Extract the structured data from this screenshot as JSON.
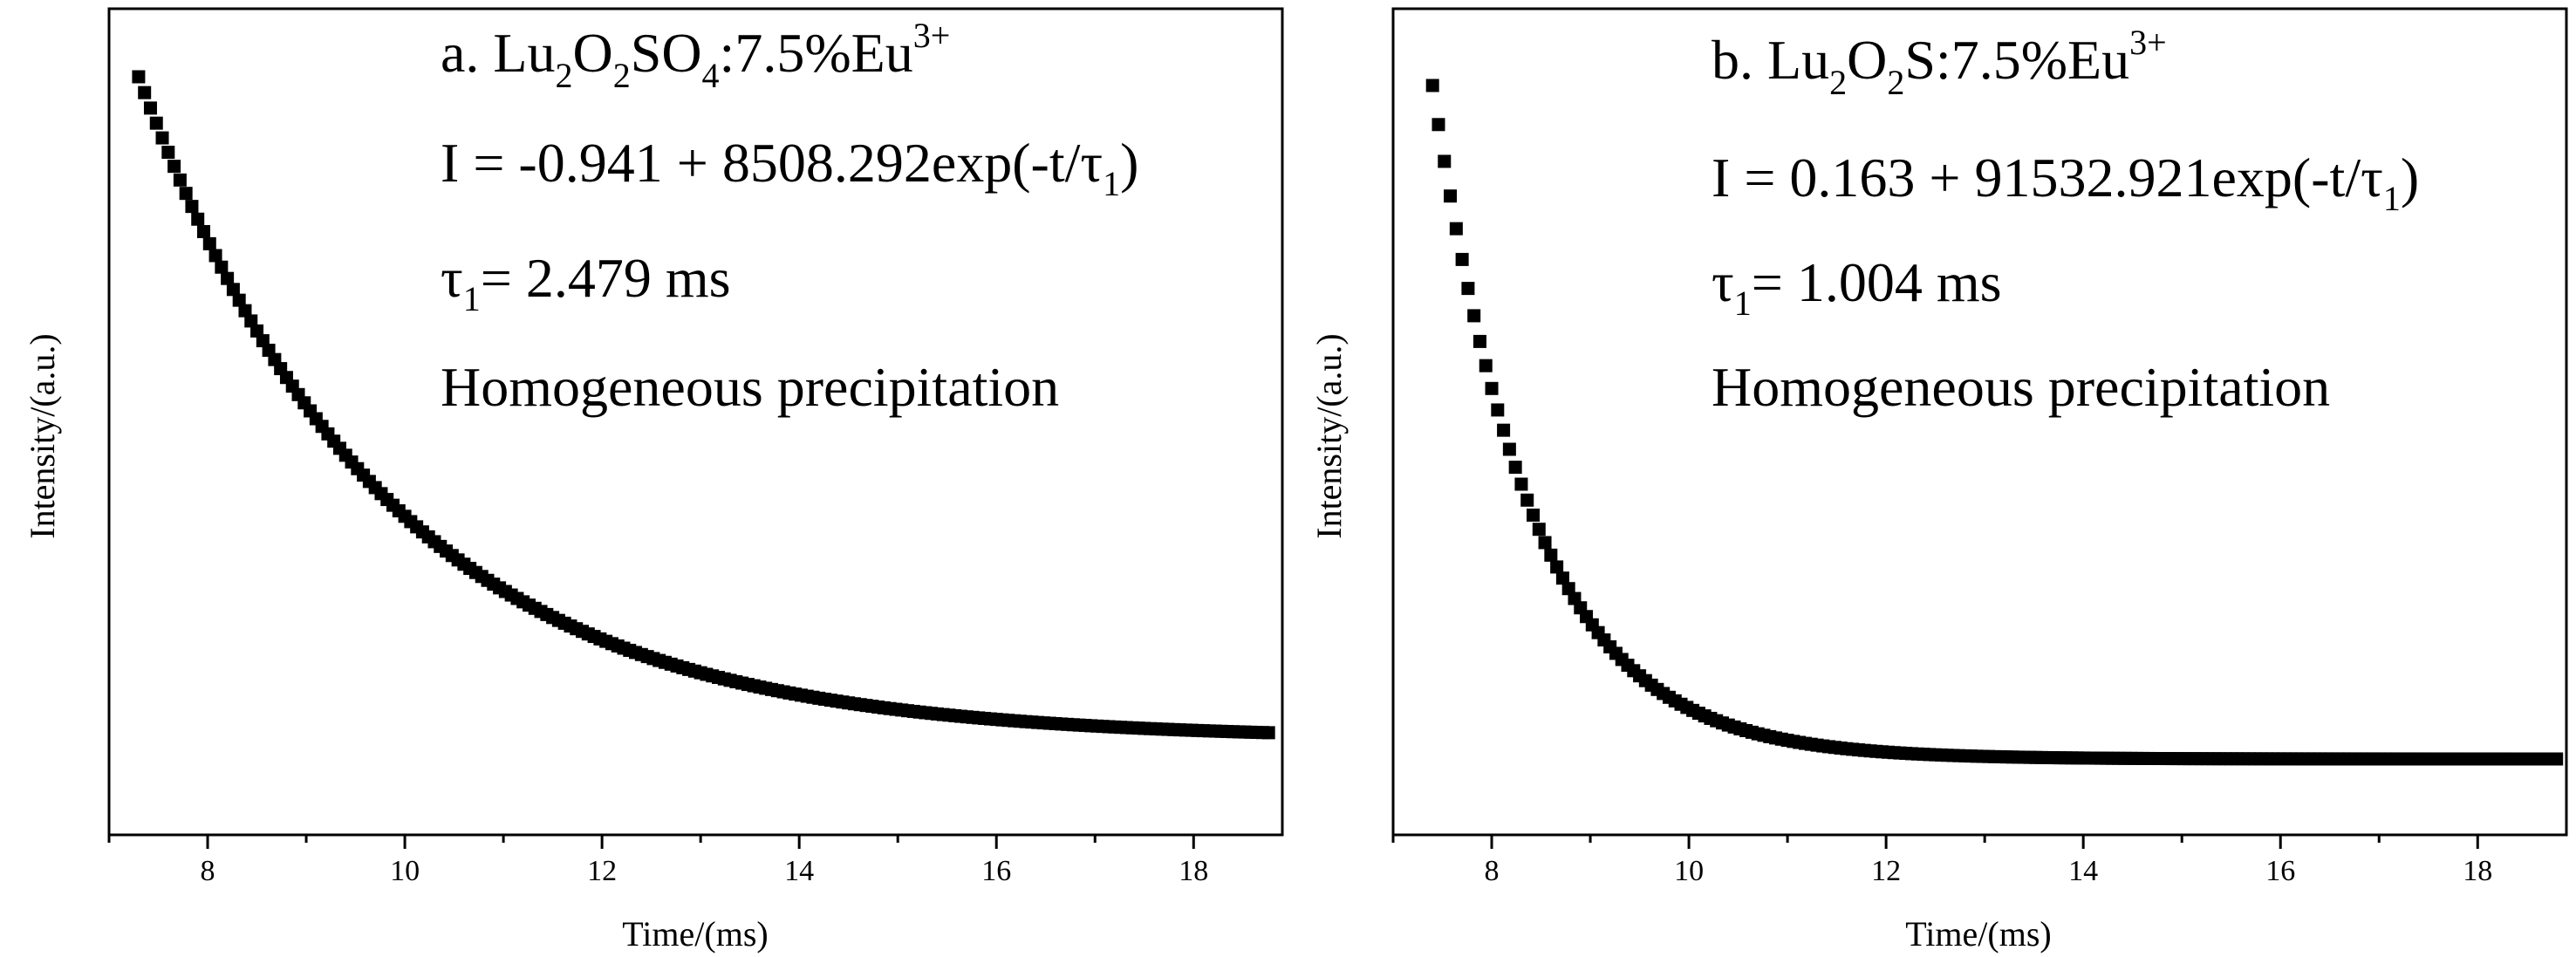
{
  "chart_data": [
    {
      "type": "scatter",
      "panel": "a",
      "xlabel": "Time/(ms)",
      "ylabel": "Intensity/(a.u.)",
      "xlim": [
        7.0,
        18.9
      ],
      "x_ticks": [
        "8",
        "10",
        "12",
        "14",
        "16",
        "18"
      ],
      "y_ticks_labeled": false,
      "annotation": {
        "prefix": "a. Lu",
        "s1": "2",
        "mid1": "O",
        "s2": "2",
        "mid2": "SO",
        "s3": "4",
        "tail": ":7.5%Eu",
        "sup": "3+",
        "eq_main": "I = -0.941 + 8508.292exp(-t/τ",
        "eq_sub": "1",
        "eq_close": ")",
        "tau_main": "τ",
        "tau_sub": "1",
        "tau_rest": "= 2.479 ms",
        "method": "Homogeneous precipitation"
      },
      "model": {
        "y0": -0.941,
        "A": 8508.292,
        "tau_ms": 2.479,
        "t_start": 7.3,
        "t_end": 18.8,
        "step": 0.06
      }
    },
    {
      "type": "scatter",
      "panel": "b",
      "xlabel": "Time/(ms)",
      "ylabel": "Intensity/(a.u.)",
      "xlim": [
        7.0,
        18.9
      ],
      "x_ticks": [
        "8",
        "10",
        "12",
        "14",
        "16",
        "18"
      ],
      "y_ticks_labeled": false,
      "annotation": {
        "prefix": "b. Lu",
        "s1": "2",
        "mid1": "O",
        "s2": "2",
        "mid2": "S",
        "tail": ":7.5%Eu",
        "sup": "3+",
        "eq_main": "I = 0.163 + 91532.921exp(-t/τ",
        "eq_sub": "1",
        "eq_close": ")",
        "tau_main": "τ",
        "tau_sub": "1",
        "tau_rest": "= 1.004 ms",
        "method": "Homogeneous precipitation"
      },
      "model": {
        "y0": 0.163,
        "A": 91532.921,
        "tau_ms": 1.004,
        "t_start": 7.4,
        "t_end": 18.8,
        "step": 0.06
      }
    }
  ]
}
